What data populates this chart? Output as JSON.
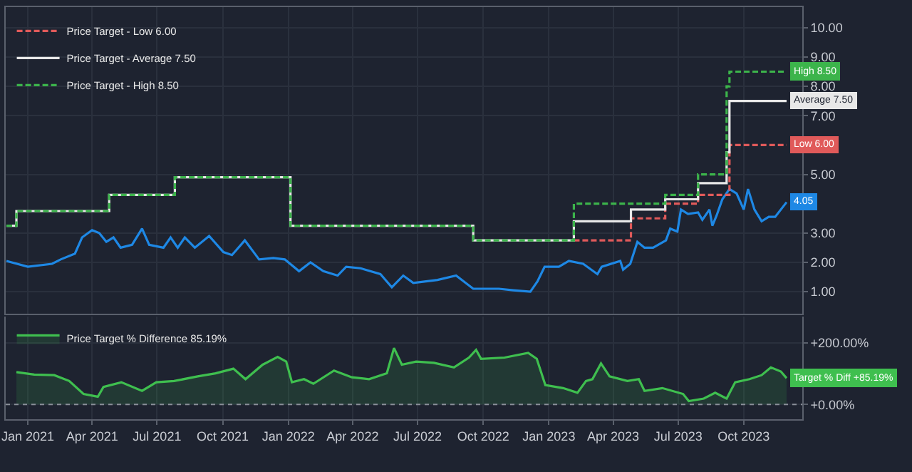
{
  "chart_data": [
    {
      "type": "line",
      "xlim": [
        "2020-12-01",
        "2023-12-22"
      ],
      "ylim": [
        0.25,
        10.7
      ],
      "xticks": [
        {
          "value": "2021-01-01",
          "label": null
        },
        {
          "value": "2021-04-01",
          "label": null
        },
        {
          "value": "2021-07-01",
          "label": null
        },
        {
          "value": "2021-10-01",
          "label": null
        },
        {
          "value": "2022-01-01",
          "label": null
        },
        {
          "value": "2022-04-01",
          "label": null
        },
        {
          "value": "2022-07-01",
          "label": null
        },
        {
          "value": "2022-10-01",
          "label": null
        },
        {
          "value": "2023-01-01",
          "label": null
        },
        {
          "value": "2023-04-01",
          "label": null
        },
        {
          "value": "2023-07-01",
          "label": null
        },
        {
          "value": "2023-10-01",
          "label": null
        }
      ],
      "yticks": [
        {
          "value": 1,
          "label": "1.00"
        },
        {
          "value": 2,
          "label": "2.00"
        },
        {
          "value": 3,
          "label": "3.00"
        },
        {
          "value": 5,
          "label": "5.00"
        },
        {
          "value": 7,
          "label": "7.00"
        },
        {
          "value": 8,
          "label": "8.00"
        },
        {
          "value": 9,
          "label": "9.00"
        },
        {
          "value": 10,
          "label": "10.00"
        }
      ],
      "tick_labels": "y",
      "grid": true,
      "legend": "top left",
      "marker": "none",
      "series": [
        {
          "color": "#1e88e5",
          "x": [
            "2020-12-02",
            "2021-01-01",
            "2021-02-04",
            "2021-02-16",
            "2021-03-08",
            "2021-03-18",
            "2021-04-01",
            "2021-04-11",
            "2021-04-21",
            "2021-05-01",
            "2021-05-11",
            "2021-05-27",
            "2021-06-10",
            "2021-06-20",
            "2021-07-10",
            "2021-07-20",
            "2021-07-30",
            "2021-08-09",
            "2021-08-23",
            "2021-09-12",
            "2021-10-02",
            "2021-10-14",
            "2021-11-01",
            "2021-11-21",
            "2021-12-11",
            "2021-12-27",
            "2022-01-16",
            "2022-02-01",
            "2022-02-19",
            "2022-03-11",
            "2022-03-23",
            "2022-04-12",
            "2022-05-10",
            "2022-05-26",
            "2022-06-11",
            "2022-06-25",
            "2022-07-29",
            "2022-08-24",
            "2022-09-17",
            "2022-10-23",
            "2022-11-12",
            "2022-12-06",
            "2022-12-16",
            "2022-12-26",
            "2023-01-15",
            "2023-01-29",
            "2023-02-18",
            "2023-03-10",
            "2023-03-16",
            "2023-04-11",
            "2023-04-15",
            "2023-04-25",
            "2023-05-05",
            "2023-05-15",
            "2023-05-27",
            "2023-06-14",
            "2023-06-20",
            "2023-06-30",
            "2023-07-05",
            "2023-07-15",
            "2023-07-29",
            "2023-08-04",
            "2023-08-14",
            "2023-08-18",
            "2023-08-24",
            "2023-09-01",
            "2023-09-11",
            "2023-09-21",
            "2023-10-01",
            "2023-10-07",
            "2023-10-16",
            "2023-10-26",
            "2023-11-05",
            "2023-11-14",
            "2023-11-30"
          ],
          "values": [
            2.05,
            1.85,
            1.95,
            2.1,
            2.3,
            2.85,
            3.1,
            3.0,
            2.7,
            2.85,
            2.5,
            2.6,
            3.15,
            2.6,
            2.5,
            2.85,
            2.5,
            2.85,
            2.5,
            2.9,
            2.35,
            2.25,
            2.75,
            2.1,
            2.15,
            2.1,
            1.7,
            2.0,
            1.7,
            1.55,
            1.85,
            1.8,
            1.6,
            1.15,
            1.55,
            1.3,
            1.4,
            1.55,
            1.1,
            1.1,
            1.05,
            1.0,
            1.35,
            1.85,
            1.85,
            2.05,
            1.95,
            1.6,
            1.85,
            2.05,
            1.75,
            1.95,
            2.7,
            2.5,
            2.5,
            2.75,
            3.15,
            3.05,
            3.8,
            3.65,
            3.7,
            3.45,
            3.8,
            3.25,
            3.6,
            4.15,
            4.5,
            4.35,
            3.8,
            4.5,
            3.8,
            3.4,
            3.55,
            3.55,
            4.05
          ]
        },
        {
          "name": "Price Target - Low 6.00",
          "type": "step",
          "color": "#e05a5a",
          "line_style": "dashed",
          "x": [
            "2023-02-05",
            "2023-04-26",
            "2023-06-13",
            "2023-07-29",
            "2023-09-11",
            "2023-11-30"
          ],
          "values": [
            2.75,
            3.5,
            4.0,
            4.3,
            6.0,
            6.0
          ]
        },
        {
          "name": "Price Target - Average 7.50",
          "type": "step",
          "color": "#e8e8e8",
          "line_style": "solid",
          "x": [
            "2020-12-02",
            "2020-12-16",
            "2021-04-25",
            "2021-07-26",
            "2022-01-04",
            "2022-09-17",
            "2023-02-05",
            "2023-04-26",
            "2023-06-13",
            "2023-07-29",
            "2023-09-07",
            "2023-09-11",
            "2023-11-30"
          ],
          "values": [
            3.25,
            3.75,
            4.3,
            4.9,
            3.25,
            2.75,
            3.4,
            3.8,
            4.15,
            4.7,
            5.75,
            7.5,
            7.5
          ]
        },
        {
          "name": "Price Target - High 8.50",
          "type": "step",
          "color": "#3cb44b",
          "line_style": "dashed",
          "x": [
            "2020-12-02",
            "2020-12-16",
            "2021-04-25",
            "2021-07-26",
            "2022-01-04",
            "2022-09-17",
            "2023-02-05",
            "2023-06-13",
            "2023-07-29",
            "2023-09-07",
            "2023-09-11",
            "2023-11-30"
          ],
          "values": [
            3.25,
            3.75,
            4.3,
            4.9,
            3.25,
            2.75,
            4.0,
            4.3,
            5.0,
            8.0,
            8.5,
            8.5
          ]
        }
      ],
      "annotations": [
        {
          "text": "High 8.50",
          "x": "2023-11-30",
          "y": 8.5
        },
        {
          "text": "Average 7.50",
          "x": "2023-11-30",
          "y": 7.5
        },
        {
          "text": "Low 6.00",
          "x": "2023-11-30",
          "y": 6.0
        },
        {
          "text": "4.05",
          "x": "2023-11-30",
          "y": 4.05
        }
      ]
    },
    {
      "type": "area",
      "xlim": [
        "2020-12-01",
        "2023-12-22"
      ],
      "ylim": [
        -48,
        285
      ],
      "xticks": [
        {
          "value": "2021-01-01",
          "label": "Jan 2021"
        },
        {
          "value": "2021-04-01",
          "label": "Apr 2021"
        },
        {
          "value": "2021-07-01",
          "label": "Jul 2021"
        },
        {
          "value": "2021-10-01",
          "label": "Oct 2021"
        },
        {
          "value": "2022-01-01",
          "label": "Jan 2022"
        },
        {
          "value": "2022-04-01",
          "label": "Apr 2022"
        },
        {
          "value": "2022-07-01",
          "label": "Jul 2022"
        },
        {
          "value": "2022-10-01",
          "label": "Oct 2022"
        },
        {
          "value": "2023-01-01",
          "label": "Jan 2023"
        },
        {
          "value": "2023-04-01",
          "label": "Apr 2023"
        },
        {
          "value": "2023-07-01",
          "label": "Jul 2023"
        },
        {
          "value": "2023-10-01",
          "label": "Oct 2023"
        }
      ],
      "yticks": [
        {
          "value": 0,
          "label": "+0.00%"
        },
        {
          "value": 200,
          "label": "+200.00%"
        }
      ],
      "grid": true,
      "legend": "top left",
      "marker": "none",
      "ref_lines": [
        {
          "axis": "y",
          "value": 0,
          "color": "#8a8f99",
          "line_style": "dotted"
        }
      ],
      "series": [
        {
          "name": "Price Target % Difference 85.19%",
          "color": "#3fbf4f",
          "x": [
            "2020-12-16",
            "2021-01-10",
            "2021-02-07",
            "2021-02-28",
            "2021-03-20",
            "2021-04-09",
            "2021-04-17",
            "2021-05-12",
            "2021-06-10",
            "2021-06-30",
            "2021-07-25",
            "2021-08-27",
            "2021-09-21",
            "2021-10-16",
            "2021-11-02",
            "2021-11-26",
            "2021-12-17",
            "2021-12-29",
            "2022-01-06",
            "2022-01-23",
            "2022-02-05",
            "2022-03-06",
            "2022-03-31",
            "2022-04-24",
            "2022-05-19",
            "2022-05-29",
            "2022-06-09",
            "2022-06-29",
            "2022-07-24",
            "2022-08-21",
            "2022-09-11",
            "2022-09-21",
            "2022-09-28",
            "2022-10-31",
            "2022-12-03",
            "2022-12-15",
            "2022-12-27",
            "2023-01-21",
            "2023-02-10",
            "2023-02-22",
            "2023-03-03",
            "2023-03-15",
            "2023-03-27",
            "2023-04-21",
            "2023-05-07",
            "2023-05-15",
            "2023-06-09",
            "2023-07-08",
            "2023-07-16",
            "2023-08-06",
            "2023-08-22",
            "2023-09-07",
            "2023-09-19",
            "2023-10-09",
            "2023-10-26",
            "2023-11-08",
            "2023-11-22",
            "2023-11-30"
          ],
          "values": [
            105,
            97,
            95,
            76,
            34,
            25,
            57,
            72,
            44,
            72,
            76,
            91,
            101,
            116,
            82,
            129,
            154,
            139,
            72,
            82,
            67,
            110,
            88,
            82,
            101,
            183,
            129,
            139,
            135,
            120,
            152,
            177,
            148,
            152,
            167,
            148,
            63,
            53,
            38,
            76,
            82,
            133,
            91,
            76,
            82,
            44,
            53,
            34,
            11,
            19,
            38,
            19,
            72,
            82,
            95,
            120,
            107,
            85.19
          ]
        }
      ],
      "annotations": [
        {
          "text": "Target % Diff +85.19%",
          "x": "2023-11-30",
          "y": 85.19
        }
      ]
    }
  ]
}
